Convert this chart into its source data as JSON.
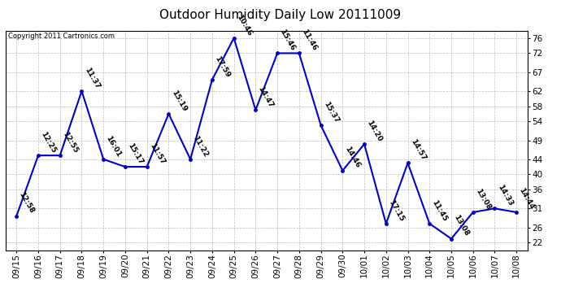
{
  "title": "Outdoor Humidity Daily Low 20111009",
  "copyright": "Copyright 2011 Cartronics.com",
  "line_color": "#0000CC",
  "background_color": "#ffffff",
  "grid_color": "#bbbbbb",
  "dates": [
    "09/15",
    "09/16",
    "09/17",
    "09/18",
    "09/19",
    "09/20",
    "09/21",
    "09/22",
    "09/23",
    "09/24",
    "09/25",
    "09/26",
    "09/27",
    "09/28",
    "09/29",
    "09/30",
    "10/01",
    "10/02",
    "10/03",
    "10/04",
    "10/05",
    "10/06",
    "10/07",
    "10/08"
  ],
  "values": [
    29,
    45,
    45,
    62,
    44,
    42,
    42,
    56,
    44,
    65,
    76,
    57,
    72,
    72,
    53,
    41,
    48,
    27,
    43,
    27,
    23,
    30,
    31,
    30
  ],
  "labels": [
    "12:58",
    "12:25",
    "12:55",
    "11:37",
    "16:01",
    "15:17",
    "11:57",
    "15:19",
    "11:22",
    "17:59",
    "10:46",
    "14:47",
    "15:46",
    "11:46",
    "15:37",
    "14:46",
    "14:20",
    "17:15",
    "14:57",
    "11:45",
    "13:08",
    "13:08",
    "14:33",
    "14:44"
  ],
  "yticks": [
    22,
    26,
    31,
    36,
    40,
    44,
    49,
    54,
    58,
    62,
    67,
    72,
    76
  ],
  "ylim": [
    20,
    78
  ],
  "title_fontsize": 11,
  "label_fontsize": 6.5,
  "tick_fontsize": 7.5,
  "copyright_fontsize": 6
}
